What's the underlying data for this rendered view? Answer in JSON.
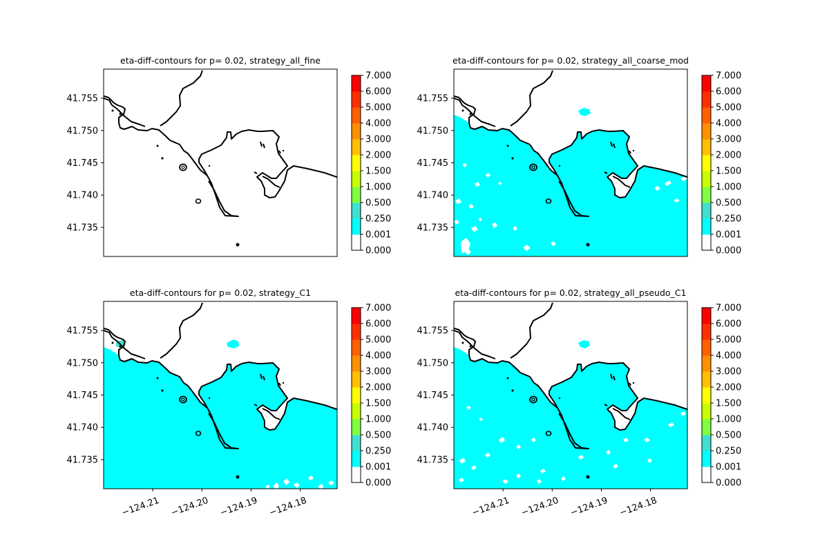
{
  "chart_data": [
    {
      "type": "contour",
      "title": "eta-diff-contours for p= 0.02, strategy_all_fine",
      "fill_extent": "none",
      "y_ticks": [
        "41.735",
        "41.740",
        "41.745",
        "41.750",
        "41.755"
      ],
      "x_ticks": [],
      "colorbar_ticks": [
        "0.000",
        "0.001",
        "0.250",
        "0.500",
        "1.000",
        "1.500",
        "2.000",
        "3.000",
        "4.000",
        "5.000",
        "6.000",
        "7.000"
      ]
    },
    {
      "type": "contour",
      "title": "eta-diff-contours for p= 0.02, strategy_all_coarse_mod",
      "fill_extent": "sea mostly cyan, scattered white gaps",
      "y_ticks": [
        "41.735",
        "41.740",
        "41.745",
        "41.750",
        "41.755"
      ],
      "x_ticks": [],
      "colorbar_ticks": [
        "0.000",
        "0.001",
        "0.250",
        "0.500",
        "1.000",
        "1.500",
        "2.000",
        "3.000",
        "4.000",
        "5.000",
        "6.000",
        "7.000"
      ]
    },
    {
      "type": "contour",
      "title": "eta-diff-contours for p= 0.02, strategy_C1",
      "fill_extent": "sea cyan, few white gaps near bottom",
      "y_ticks": [
        "41.735",
        "41.740",
        "41.745",
        "41.750",
        "41.755"
      ],
      "x_ticks": [
        "−124.21",
        "−124.20",
        "−124.19",
        "−124.18"
      ],
      "colorbar_ticks": [
        "0.000",
        "0.001",
        "0.250",
        "0.500",
        "1.000",
        "1.500",
        "2.000",
        "3.000",
        "4.000",
        "5.000",
        "6.000",
        "7.000"
      ]
    },
    {
      "type": "contour",
      "title": "eta-diff-contours for p= 0.02, strategy_all_pseudo_C1",
      "fill_extent": "sea cyan, scattered white gaps",
      "y_ticks": [
        "41.735",
        "41.740",
        "41.745",
        "41.750",
        "41.755"
      ],
      "x_ticks": [
        "−124.21",
        "−124.20",
        "−124.19",
        "−124.18"
      ],
      "colorbar_ticks": [
        "0.000",
        "0.001",
        "0.250",
        "0.500",
        "1.000",
        "1.500",
        "2.000",
        "3.000",
        "4.000",
        "5.000",
        "6.000",
        "7.000"
      ]
    }
  ],
  "colors": {
    "levels": [
      "#ffffff",
      "#00ffff",
      "#40e0d0",
      "#7fff40",
      "#c8ff00",
      "#ffff00",
      "#ffc000",
      "#ff9000",
      "#ff6000",
      "#ff3000",
      "#ff0000"
    ],
    "sea": "#00ffff",
    "coast": "#000000"
  }
}
